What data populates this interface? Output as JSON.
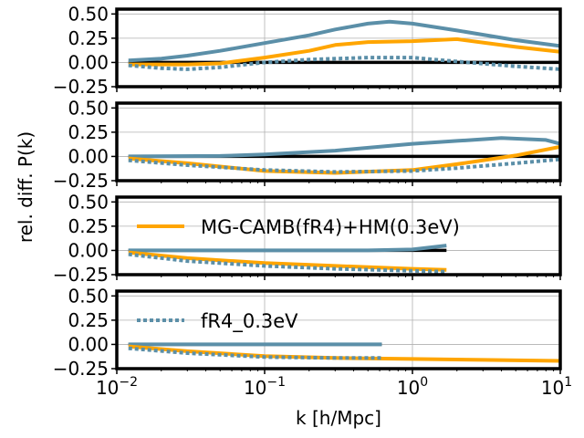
{
  "chart_data": {
    "type": "line",
    "xlabel": "k [h/Mpc]",
    "ylabel": "rel. diff. P(k)",
    "xscale": "log",
    "xlim": [
      0.01,
      10
    ],
    "ylim": [
      -0.25,
      0.55
    ],
    "xticks": [
      0.01,
      0.1,
      1,
      10
    ],
    "xtick_labels": [
      {
        "base": "10",
        "exp": "−2"
      },
      {
        "base": "10",
        "exp": "−1"
      },
      {
        "base": "10",
        "exp": "0"
      },
      {
        "base": "10",
        "exp": "1"
      }
    ],
    "yticks": [
      -0.25,
      0,
      0.25,
      0.5
    ],
    "ytick_labels": [
      "−0.25",
      "0.00",
      "0.25",
      "0.50"
    ],
    "grid": true,
    "colors": {
      "orange": "#ffa500",
      "blue": "#5b8fa8",
      "zero_line": "#000000"
    },
    "panels": [
      {
        "legend": null,
        "series": [
          {
            "style": "zero",
            "color": "#000000",
            "x": [
              0.012,
              10
            ],
            "y": [
              0,
              0
            ]
          },
          {
            "style": "solid",
            "color": "#5b8fa8",
            "x": [
              0.012,
              0.02,
              0.03,
              0.05,
              0.1,
              0.2,
              0.3,
              0.5,
              0.7,
              1.0,
              2.0,
              5.0,
              10
            ],
            "y": [
              0.02,
              0.04,
              0.07,
              0.12,
              0.2,
              0.28,
              0.34,
              0.4,
              0.42,
              0.4,
              0.33,
              0.23,
              0.17
            ]
          },
          {
            "style": "solid",
            "color": "#ffa500",
            "x": [
              0.012,
              0.02,
              0.03,
              0.05,
              0.1,
              0.2,
              0.3,
              0.5,
              1.0,
              2.0,
              5.0,
              10
            ],
            "y": [
              -0.02,
              -0.02,
              -0.02,
              -0.01,
              0.05,
              0.12,
              0.18,
              0.21,
              0.22,
              0.24,
              0.16,
              0.11
            ]
          },
          {
            "style": "dotted",
            "color": "#5b8fa8",
            "x": [
              0.012,
              0.02,
              0.03,
              0.05,
              0.1,
              0.2,
              0.5,
              1.0,
              2.0,
              5.0,
              10
            ],
            "y": [
              -0.03,
              -0.06,
              -0.07,
              -0.05,
              0.0,
              0.03,
              0.05,
              0.05,
              0.01,
              -0.04,
              -0.07
            ]
          }
        ]
      },
      {
        "legend": null,
        "series": [
          {
            "style": "zero",
            "color": "#000000",
            "x": [
              0.012,
              10
            ],
            "y": [
              0,
              0
            ]
          },
          {
            "style": "solid",
            "color": "#5b8fa8",
            "x": [
              0.012,
              0.05,
              0.1,
              0.3,
              1.0,
              2.0,
              4.0,
              8.0,
              10
            ],
            "y": [
              0.0,
              0.005,
              0.02,
              0.06,
              0.13,
              0.16,
              0.19,
              0.17,
              0.13
            ]
          },
          {
            "style": "solid",
            "color": "#ffa500",
            "x": [
              0.012,
              0.03,
              0.1,
              0.3,
              1.0,
              2.0,
              5.0,
              10
            ],
            "y": [
              -0.02,
              -0.07,
              -0.15,
              -0.17,
              -0.14,
              -0.08,
              0.01,
              0.1
            ]
          },
          {
            "style": "dotted",
            "color": "#5b8fa8",
            "x": [
              0.012,
              0.03,
              0.1,
              0.3,
              1.0,
              2.0,
              5.0,
              10
            ],
            "y": [
              -0.04,
              -0.09,
              -0.14,
              -0.16,
              -0.15,
              -0.12,
              -0.07,
              -0.03
            ]
          }
        ]
      },
      {
        "legend": {
          "label": "MG-CAMB(fR4)+HM(0.3eV)",
          "style": "solid",
          "color": "#ffa500"
        },
        "series": [
          {
            "style": "zero",
            "color": "#000000",
            "x": [
              0.012,
              1.7
            ],
            "y": [
              0,
              0
            ]
          },
          {
            "style": "solid",
            "color": "#5b8fa8",
            "x": [
              0.012,
              0.1,
              0.5,
              1.0,
              1.7
            ],
            "y": [
              0.0,
              0.0,
              0.0,
              0.01,
              0.05
            ]
          },
          {
            "style": "solid",
            "color": "#ffa500",
            "x": [
              0.012,
              0.03,
              0.1,
              0.3,
              1.0,
              1.7
            ],
            "y": [
              -0.02,
              -0.08,
              -0.13,
              -0.16,
              -0.19,
              -0.2
            ]
          },
          {
            "style": "dotted",
            "color": "#5b8fa8",
            "x": [
              0.012,
              0.03,
              0.1,
              0.3,
              1.0,
              1.7
            ],
            "y": [
              -0.04,
              -0.11,
              -0.16,
              -0.19,
              -0.21,
              -0.22
            ]
          }
        ]
      },
      {
        "legend": {
          "label": "fR4_0.3eV",
          "style": "dotted",
          "color": "#5b8fa8"
        },
        "series": [
          {
            "style": "zero",
            "color": "#000000",
            "x": [
              0.012,
              0.62
            ],
            "y": [
              0,
              0
            ]
          },
          {
            "style": "solid",
            "color": "#5b8fa8",
            "x": [
              0.012,
              0.1,
              0.62
            ],
            "y": [
              0.0,
              0.0,
              0.0
            ]
          },
          {
            "style": "solid",
            "color": "#ffa500",
            "x": [
              0.012,
              0.03,
              0.1,
              0.3,
              1.0,
              3.0,
              10
            ],
            "y": [
              -0.02,
              -0.07,
              -0.12,
              -0.14,
              -0.15,
              -0.16,
              -0.17
            ]
          },
          {
            "style": "dotted",
            "color": "#5b8fa8",
            "x": [
              0.012,
              0.03,
              0.1,
              0.3,
              0.62
            ],
            "y": [
              -0.04,
              -0.09,
              -0.13,
              -0.14,
              -0.14
            ]
          }
        ]
      }
    ]
  }
}
